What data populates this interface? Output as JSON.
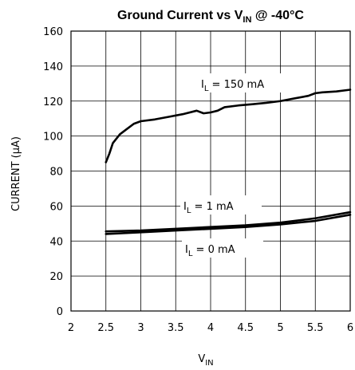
{
  "chart_data": {
    "type": "line",
    "title": {
      "main": "Ground Current vs V",
      "sub": "IN",
      "suffix": " @ -40°C"
    },
    "xlabel": {
      "main": "V",
      "sub": "IN"
    },
    "ylabel": "CURRENT (μA)",
    "xlim": [
      2,
      6
    ],
    "ylim": [
      0,
      160
    ],
    "xticks": [
      2,
      2.5,
      3,
      3.5,
      4,
      4.5,
      5,
      5.5,
      6
    ],
    "yticks": [
      0,
      20,
      40,
      60,
      80,
      100,
      120,
      140,
      160
    ],
    "grid": true,
    "series": [
      {
        "label_main": "I",
        "label_sub": "L",
        "label_value": " = 150 mA",
        "x": [
          2.5,
          2.55,
          2.6,
          2.7,
          2.8,
          2.9,
          3.0,
          3.2,
          3.4,
          3.6,
          3.8,
          3.9,
          4.0,
          4.1,
          4.2,
          4.4,
          4.6,
          4.8,
          5.0,
          5.2,
          5.4,
          5.5,
          5.6,
          5.8,
          6.0
        ],
        "y": [
          85,
          90,
          96,
          101,
          104,
          107,
          108.5,
          109.5,
          111,
          112.5,
          114.5,
          113,
          113.5,
          114.5,
          116.5,
          117.5,
          118.2,
          119,
          120,
          121.5,
          123,
          124.5,
          125,
          125.5,
          126.5
        ]
      },
      {
        "label_main": "I",
        "label_sub": "L",
        "label_value": " = 1 mA",
        "x": [
          2.5,
          3.0,
          3.5,
          4.0,
          4.5,
          5.0,
          5.5,
          6.0
        ],
        "y": [
          45.5,
          46,
          47,
          48,
          49,
          50.5,
          53,
          56.5
        ]
      },
      {
        "label_main": "I",
        "label_sub": "L",
        "label_value": " = 0 mA",
        "x": [
          2.5,
          3.0,
          3.5,
          4.0,
          4.5,
          5.0,
          5.5,
          6.0
        ],
        "y": [
          44,
          45,
          46,
          47,
          48,
          49.5,
          51.5,
          55
        ]
      }
    ]
  }
}
